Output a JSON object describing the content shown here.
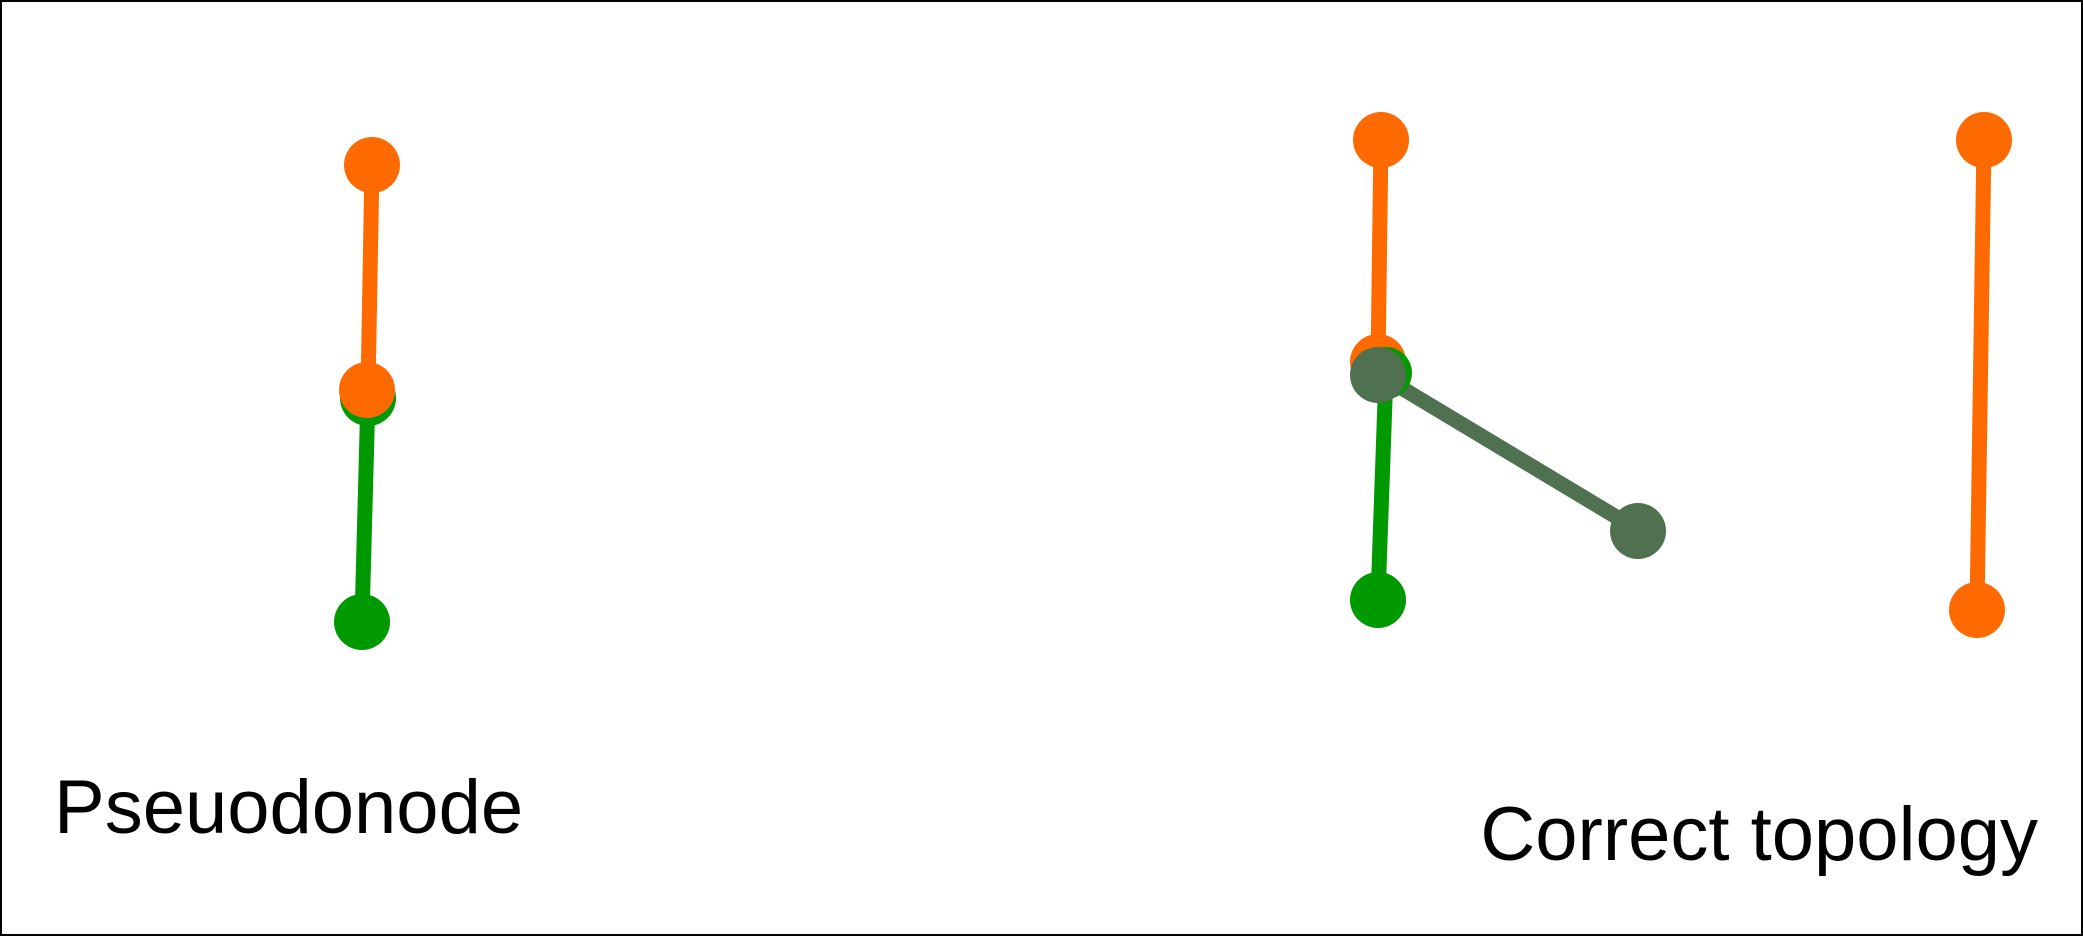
{
  "captions": {
    "left": "Pseuodonode",
    "right": "Correct topology"
  },
  "colors": {
    "orange": "#ff6a00",
    "green": "#009900",
    "dark_green": "#4f7150",
    "frame": "#000000",
    "text": "#000000"
  },
  "panels": [
    {
      "name": "pseudonode",
      "description_label": "captions.left",
      "edges": [
        {
          "from": "orange-top",
          "to": "shared-node",
          "color": "orange"
        },
        {
          "from": "shared-node",
          "to": "green-bottom",
          "color": "green"
        }
      ]
    },
    {
      "name": "correct-topology",
      "description_label": "captions.right",
      "edges": [
        {
          "from": "orange-top",
          "to": "orange-mid",
          "color": "orange"
        },
        {
          "from": "green-mid",
          "to": "green-bottom",
          "color": "green"
        },
        {
          "from": "dark-mid",
          "to": "dark-end",
          "color": "dark_green"
        },
        {
          "from": "orange-right-top",
          "to": "orange-right-bottom",
          "color": "orange"
        }
      ]
    }
  ]
}
